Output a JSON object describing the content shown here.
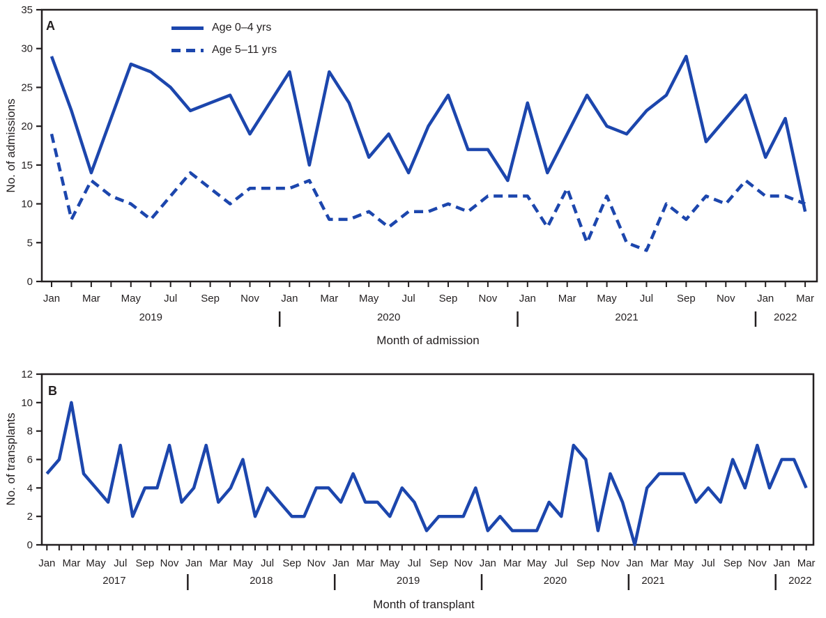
{
  "colors": {
    "line": "#1C46AD",
    "axis": "#231F20",
    "text": "#231F20",
    "background": "#FFFFFF"
  },
  "chart_data": [
    {
      "panel_label": "A",
      "type": "line",
      "y_axis_title": "No. of admissions",
      "x_axis_title": "Month of admission",
      "x_start": "Jan 2019",
      "x_end": "Mar 2022",
      "n_months": 39,
      "ylim": [
        0,
        35
      ],
      "y_tick_step": 5,
      "y_tick_labels": [
        "0",
        "5",
        "10",
        "15",
        "20",
        "25",
        "30",
        "35"
      ],
      "x_tick_labels": [
        "Jan",
        "Mar",
        "May",
        "Jul",
        "Sep",
        "Nov",
        "Jan",
        "Mar",
        "May",
        "Jul",
        "Sep",
        "Nov",
        "Jan",
        "Mar",
        "May",
        "Jul",
        "Sep",
        "Nov",
        "Jan",
        "Mar"
      ],
      "years": [
        {
          "label": "2019",
          "center_month_index": 5
        },
        {
          "label": "2020",
          "center_month_index": 17
        },
        {
          "label": "2021",
          "center_month_index": 29
        },
        {
          "label": "2022",
          "center_month_index": 37
        }
      ],
      "grid": false,
      "legend_position": "top-left-inside",
      "legend": [
        {
          "label": "Age 0–4 yrs",
          "style": "solid"
        },
        {
          "label": "Age 5–11 yrs",
          "style": "dashed"
        }
      ],
      "series": [
        {
          "name": "Age 0–4 yrs",
          "dash": false,
          "values": [
            29,
            22,
            14,
            21,
            28,
            27,
            25,
            22,
            23,
            24,
            19,
            23,
            27,
            15,
            27,
            23,
            16,
            19,
            14,
            20,
            24,
            17,
            17,
            13,
            23,
            14,
            19,
            24,
            20,
            19,
            22,
            24,
            29,
            18,
            21,
            24,
            16,
            21,
            9
          ]
        },
        {
          "name": "Age 5–11 yrs",
          "dash": true,
          "values": [
            19,
            8,
            13,
            11,
            10,
            8,
            11,
            14,
            12,
            10,
            12,
            12,
            12,
            13,
            8,
            8,
            9,
            7,
            9,
            9,
            10,
            9,
            11,
            11,
            11,
            7,
            12,
            5,
            11,
            5,
            4,
            10,
            8,
            11,
            10,
            13,
            11,
            11,
            10
          ]
        }
      ]
    },
    {
      "panel_label": "B",
      "type": "line",
      "y_axis_title": "No. of transplants",
      "x_axis_title": "Month of transplant",
      "x_start": "Jan 2017",
      "x_end": "Mar 2022",
      "n_months": 63,
      "ylim": [
        0,
        12
      ],
      "y_tick_step": 2,
      "y_tick_labels": [
        "0",
        "2",
        "4",
        "6",
        "8",
        "10",
        "12"
      ],
      "x_tick_labels": [
        "Jan",
        "Mar",
        "May",
        "Jul",
        "Sep",
        "Nov",
        "Jan",
        "Mar",
        "May",
        "Jul",
        "Sep",
        "Nov",
        "Jan",
        "Mar",
        "May",
        "Jul",
        "Sep",
        "Nov",
        "Jan",
        "Mar",
        "May",
        "Jul",
        "Sep",
        "Nov",
        "Jan",
        "Mar",
        "May",
        "Jul",
        "Sep",
        "Nov",
        "Jan",
        "Mar"
      ],
      "years": [
        {
          "label": "2017",
          "center_month_index": 5.5
        },
        {
          "label": "2018",
          "center_month_index": 17.5
        },
        {
          "label": "2019",
          "center_month_index": 29.5
        },
        {
          "label": "2020",
          "center_month_index": 41.5
        },
        {
          "label": "2021",
          "center_month_index": 49.5
        },
        {
          "label": "2022",
          "center_month_index": 61.5
        }
      ],
      "grid": false,
      "legend_position": "none",
      "legend": [],
      "series": [
        {
          "name": "No. of transplants",
          "dash": false,
          "values": [
            5,
            6,
            10,
            5,
            4,
            3,
            7,
            2,
            4,
            4,
            7,
            3,
            4,
            7,
            3,
            4,
            6,
            2,
            4,
            3,
            2,
            2,
            4,
            4,
            3,
            5,
            3,
            3,
            2,
            4,
            3,
            1,
            2,
            2,
            2,
            4,
            1,
            2,
            1,
            1,
            1,
            3,
            2,
            7,
            6,
            1,
            5,
            3,
            0,
            4,
            5,
            5,
            5,
            3,
            4,
            3,
            6,
            4,
            7,
            4,
            6,
            6,
            4
          ]
        }
      ]
    }
  ]
}
